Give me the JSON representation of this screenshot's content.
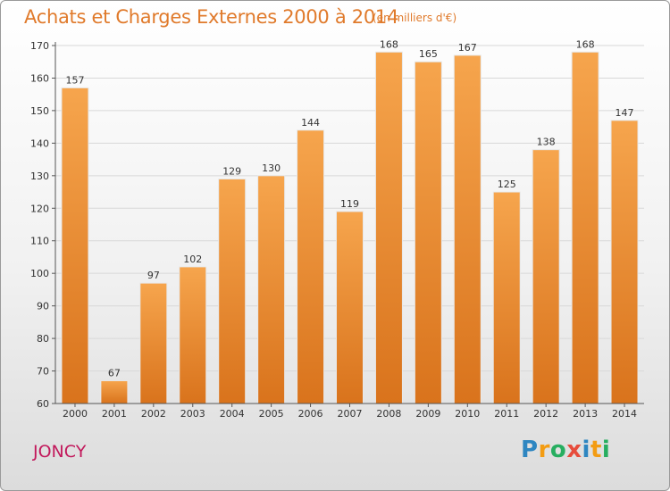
{
  "header": {
    "title": "Achats et Charges Externes 2000 à 2014",
    "unit": "(en milliers d'€)"
  },
  "footer": {
    "place": "JONCY",
    "logo": [
      "P",
      "r",
      "o",
      "x",
      "i",
      "t",
      "i"
    ],
    "logo_colors": [
      "#2e86c1",
      "#f39c12",
      "#27ae60",
      "#e74c3c",
      "#2e86c1",
      "#f39c12",
      "#27ae60"
    ]
  },
  "colors": {
    "bar_light": "#f6a54d",
    "bar_dark": "#d9731c",
    "grid": "#d8d8d8",
    "axis": "#555555"
  },
  "chart_data": {
    "type": "bar",
    "title": "Achats et Charges Externes 2000 à 2014",
    "subtitle": "(en milliers d'€)",
    "categories": [
      "2000",
      "2001",
      "2002",
      "2003",
      "2004",
      "2005",
      "2006",
      "2007",
      "2008",
      "2009",
      "2010",
      "2011",
      "2012",
      "2013",
      "2014"
    ],
    "values": [
      157,
      67,
      97,
      102,
      129,
      130,
      144,
      119,
      168,
      165,
      167,
      125,
      138,
      168,
      147
    ],
    "ylim": [
      60,
      170
    ],
    "yticks": [
      60,
      70,
      80,
      90,
      100,
      110,
      120,
      130,
      140,
      150,
      160,
      170
    ],
    "grid": true,
    "data_labels": true
  }
}
